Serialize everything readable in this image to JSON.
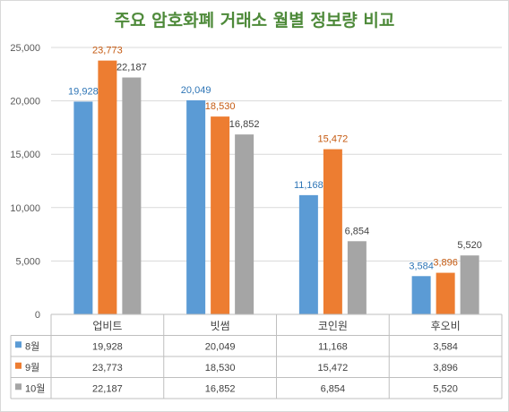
{
  "chart_data": {
    "type": "bar",
    "title": "주요 암호화폐 거래소 월별 정보량 비교",
    "categories": [
      "업비트",
      "빗썸",
      "코인원",
      "후오비"
    ],
    "series": [
      {
        "name": "8월",
        "color": "#5b9bd5",
        "values": [
          19928,
          20049,
          11168,
          3584
        ],
        "labels": [
          "19,928",
          "20,049",
          "11,168",
          "3,584"
        ]
      },
      {
        "name": "9월",
        "color": "#ed7d31",
        "values": [
          23773,
          18530,
          15472,
          3896
        ],
        "labels": [
          "23,773",
          "18,530",
          "15,472",
          "3,896"
        ]
      },
      {
        "name": "10월",
        "color": "#a5a5a5",
        "values": [
          22187,
          16852,
          6854,
          5520
        ],
        "labels": [
          "22,187",
          "16,852",
          "6,854",
          "5,520"
        ]
      }
    ],
    "ylim": [
      0,
      25000
    ],
    "yticks": [
      "0",
      "5,000",
      "10,000",
      "15,000",
      "20,000",
      "25,000"
    ],
    "grid": true,
    "legend": "data-table",
    "label_colors": {
      "8월": "#2e75b6",
      "9월": "#c55a11",
      "10월": "#404040"
    }
  }
}
